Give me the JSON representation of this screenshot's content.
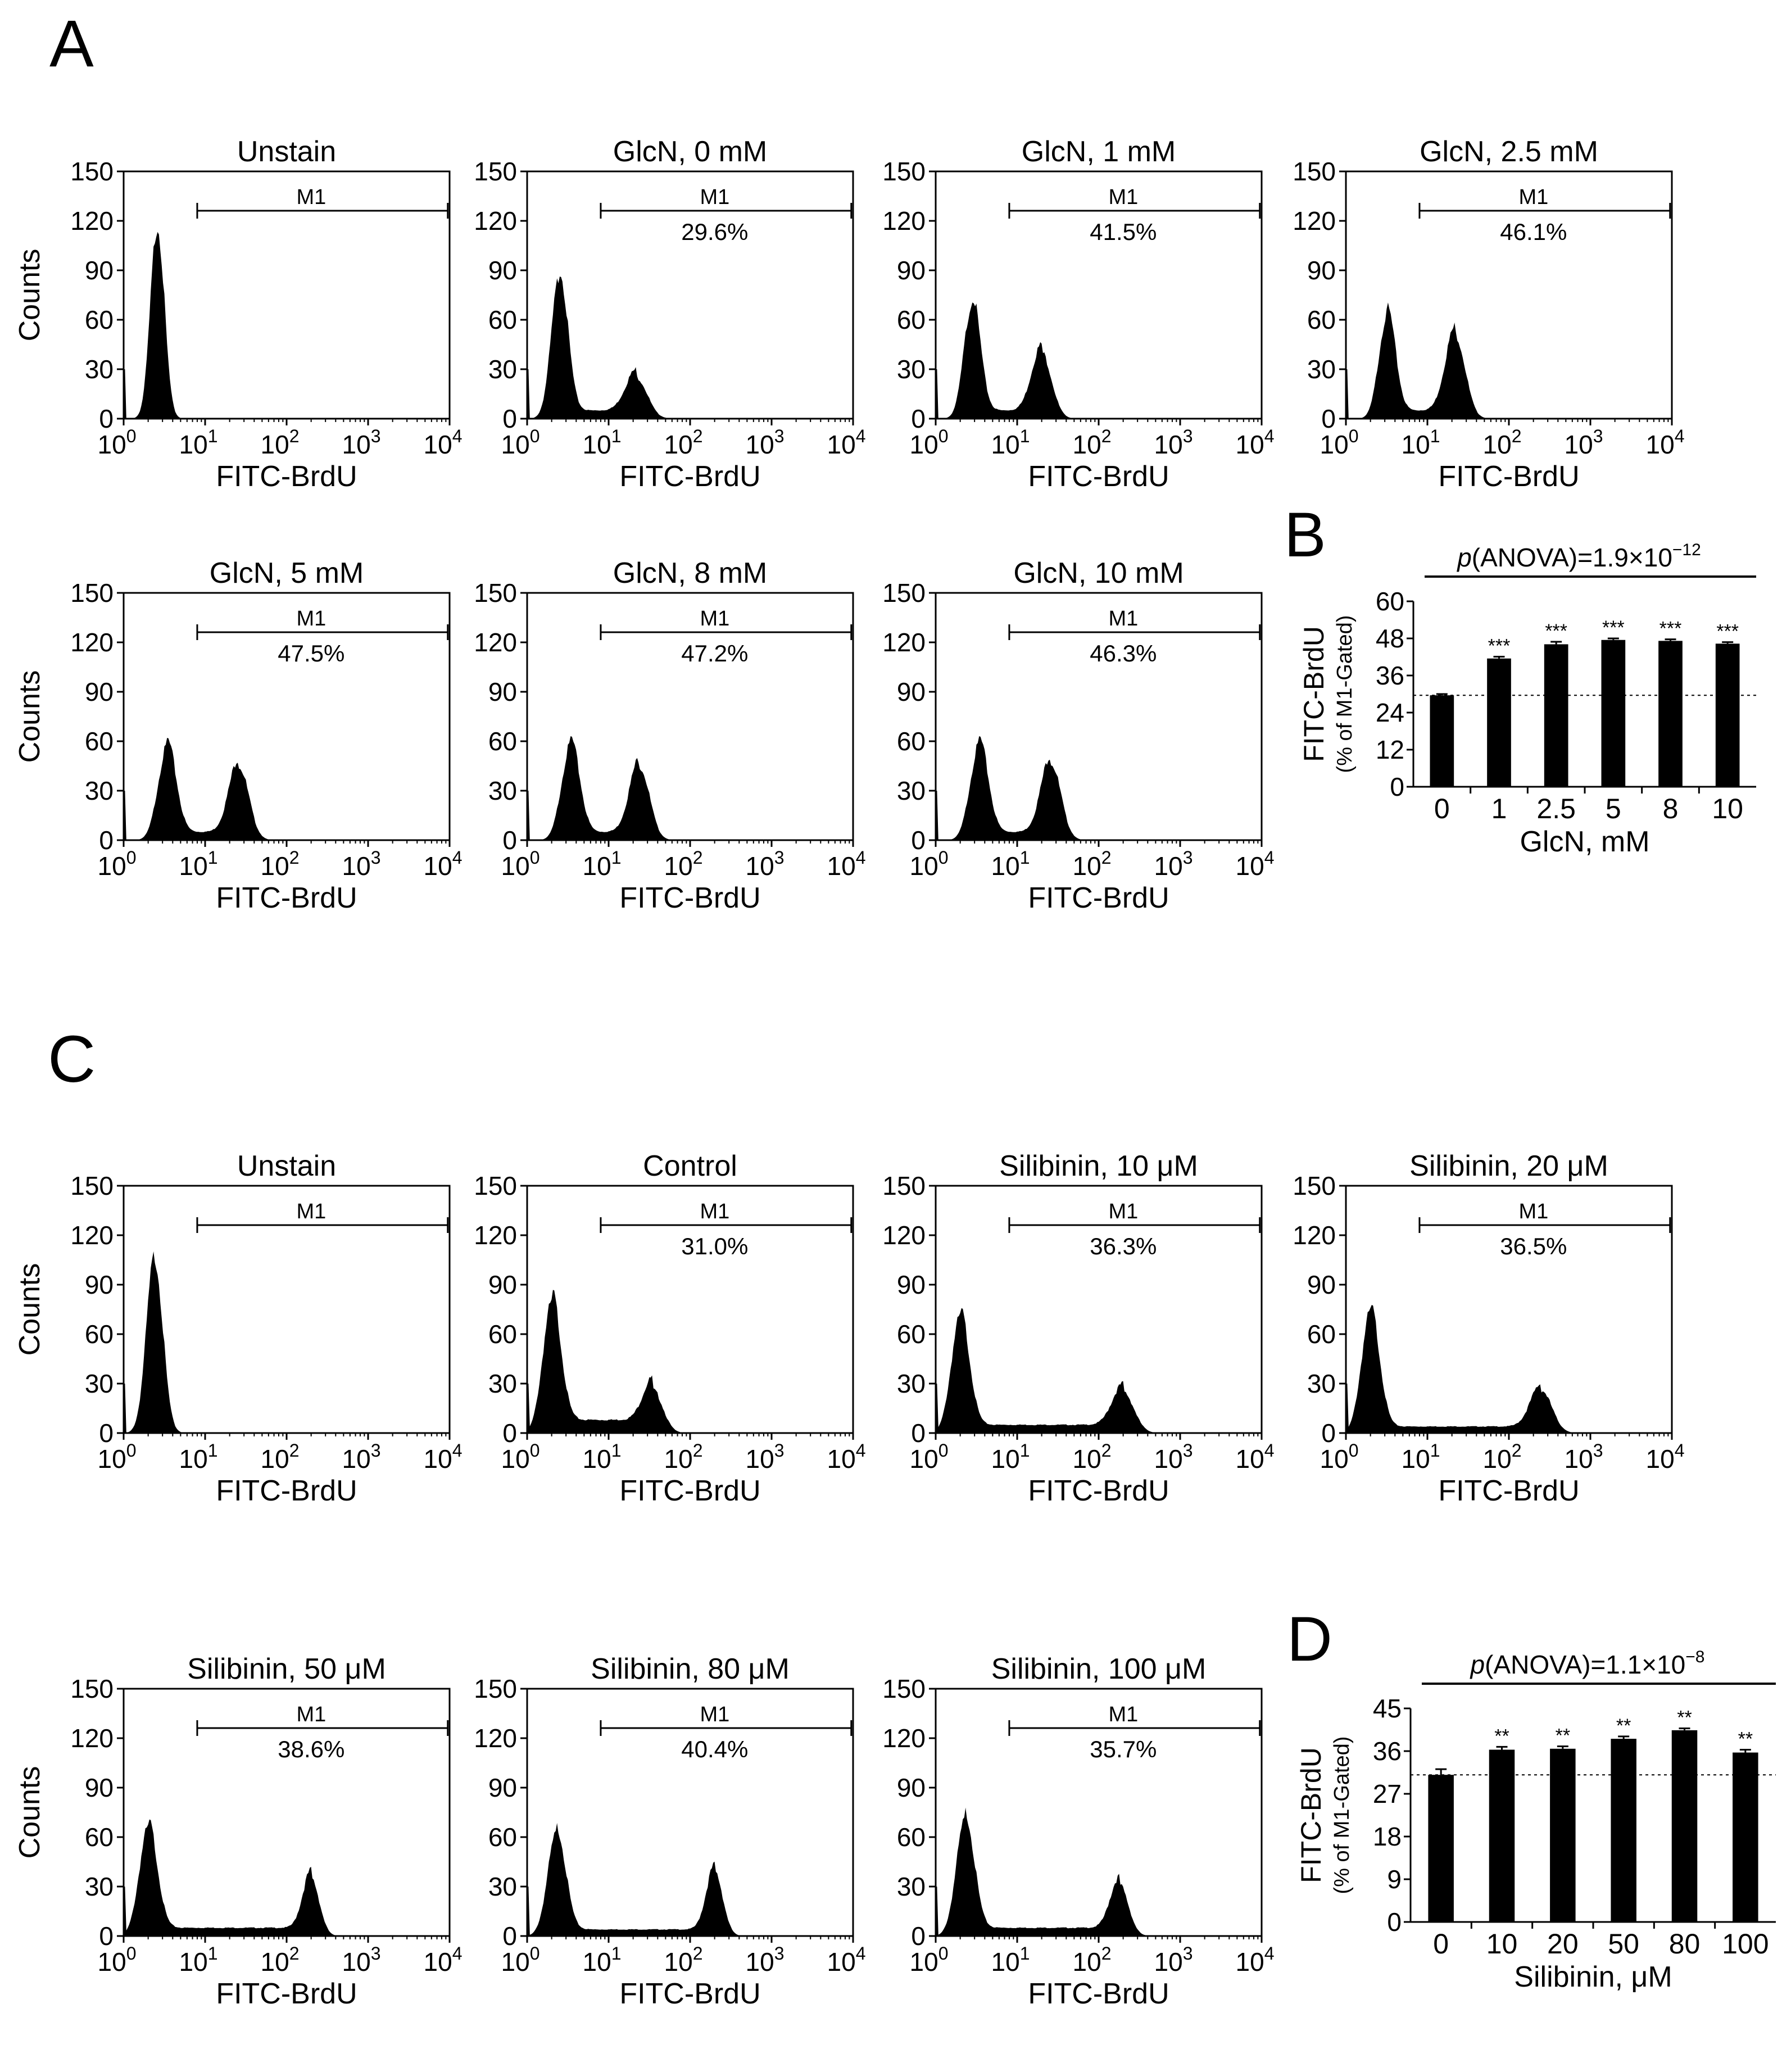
{
  "panel_labels": {
    "a": "A",
    "b": "B",
    "c": "C",
    "d": "D"
  },
  "common": {
    "x_axis_label": "FITC-BrdU",
    "y_axis_label": "Counts",
    "gate_label": "M1",
    "y_ticks": [
      "0",
      "30",
      "60",
      "90",
      "120",
      "150"
    ],
    "x_tick_base": "10",
    "x_tick_exps": [
      "0",
      "1",
      "2",
      "3",
      "4"
    ]
  },
  "chart_data": [
    {
      "id": "A",
      "type": "histogram",
      "xlabel": "FITC-BrdU",
      "ylabel": "Counts",
      "xscale": "log",
      "xlim": [
        1,
        10000
      ],
      "ylim": [
        0,
        150
      ],
      "gate": {
        "label": "M1",
        "range": [
          8,
          9500
        ]
      },
      "histograms": [
        {
          "title": "Unstain",
          "gate_pct": "",
          "peaks": [
            {
              "center": 2.6,
              "height": 118,
              "width": 0.085
            }
          ],
          "baseline": 1
        },
        {
          "title": "GlcN, 0 mM",
          "gate_pct": "29.6%",
          "peaks": [
            {
              "center": 2.5,
              "height": 86,
              "width": 0.1
            },
            {
              "center": 22,
              "height": 25,
              "width": 0.13
            }
          ],
          "baseline": 5
        },
        {
          "title": "GlcN, 1 mM",
          "gate_pct": "41.5%",
          "peaks": [
            {
              "center": 2.8,
              "height": 70,
              "width": 0.1
            },
            {
              "center": 20,
              "height": 40,
              "width": 0.12
            }
          ],
          "baseline": 5
        },
        {
          "title": "GlcN, 2.5 mM",
          "gate_pct": "46.1%",
          "peaks": [
            {
              "center": 3.2,
              "height": 63,
              "width": 0.1
            },
            {
              "center": 22,
              "height": 51,
              "width": 0.12
            }
          ],
          "baseline": 5
        },
        {
          "title": "GlcN, 5 mM",
          "gate_pct": "47.5%",
          "peaks": [
            {
              "center": 3.4,
              "height": 56,
              "width": 0.11
            },
            {
              "center": 26,
              "height": 45,
              "width": 0.12
            }
          ],
          "baseline": 5
        },
        {
          "title": "GlcN, 8 mM",
          "gate_pct": "47.2%",
          "peaks": [
            {
              "center": 3.4,
              "height": 57,
              "width": 0.11
            },
            {
              "center": 24,
              "height": 45,
              "width": 0.12
            }
          ],
          "baseline": 5
        },
        {
          "title": "GlcN, 10 mM",
          "gate_pct": "46.3%",
          "peaks": [
            {
              "center": 3.4,
              "height": 57,
              "width": 0.11
            },
            {
              "center": 26,
              "height": 47,
              "width": 0.12
            }
          ],
          "baseline": 5
        }
      ]
    },
    {
      "id": "B",
      "type": "bar",
      "title": "p(ANOVA)=1.9×10−12",
      "title_parts": {
        "p": "p",
        "rest": "(ANOVA)=1.9×10",
        "exp": "−12"
      },
      "xlabel": "GlcN, mM",
      "ylabel": "FITC-BrdU",
      "ylabel_sub": "(% of M1-Gated)",
      "categories": [
        "0",
        "1",
        "2.5",
        "5",
        "8",
        "10"
      ],
      "values": [
        29.6,
        41.5,
        46.1,
        47.5,
        47.2,
        46.3
      ],
      "errors": [
        0.4,
        0.6,
        0.8,
        0.5,
        0.5,
        0.5
      ],
      "significance": [
        "",
        "***",
        "***",
        "***",
        "***",
        "***"
      ],
      "reference_line": 29.6,
      "ylim": [
        0,
        60
      ],
      "y_ticks": [
        "0",
        "12",
        "24",
        "36",
        "48",
        "60"
      ]
    },
    {
      "id": "C",
      "type": "histogram",
      "xlabel": "FITC-BrdU",
      "ylabel": "Counts",
      "xscale": "log",
      "xlim": [
        1,
        10000
      ],
      "ylim": [
        0,
        150
      ],
      "gate": {
        "label": "M1",
        "range": [
          8,
          9500
        ]
      },
      "histograms": [
        {
          "title": "Unstain",
          "gate_pct": "",
          "peaks": [
            {
              "center": 2.4,
              "height": 107,
              "width": 0.1
            }
          ],
          "baseline": 1
        },
        {
          "title": "Control",
          "gate_pct": "31.0%",
          "peaks": [
            {
              "center": 2.0,
              "height": 78,
              "width": 0.11
            },
            {
              "center": 35,
              "height": 26,
              "width": 0.12
            }
          ],
          "baseline": 8
        },
        {
          "title": "Silibinin, 10 μM",
          "gate_pct": "36.3%",
          "peaks": [
            {
              "center": 2.0,
              "height": 70,
              "width": 0.11
            },
            {
              "center": 200,
              "height": 25,
              "width": 0.13
            }
          ],
          "baseline": 5
        },
        {
          "title": "Silibinin, 20 μM",
          "gate_pct": "36.5%",
          "peaks": [
            {
              "center": 2.0,
              "height": 73,
              "width": 0.11
            },
            {
              "center": 250,
              "height": 26,
              "width": 0.13
            }
          ],
          "baseline": 4
        },
        {
          "title": "Silibinin, 50 μM",
          "gate_pct": "38.6%",
          "peaks": [
            {
              "center": 2.0,
              "height": 65,
              "width": 0.11
            },
            {
              "center": 200,
              "height": 35,
              "width": 0.1
            }
          ],
          "baseline": 5
        },
        {
          "title": "Silibinin, 80 μM",
          "gate_pct": "40.4%",
          "peaks": [
            {
              "center": 2.3,
              "height": 62,
              "width": 0.11
            },
            {
              "center": 200,
              "height": 39,
              "width": 0.1
            }
          ],
          "baseline": 4
        },
        {
          "title": "Silibinin, 100 μM",
          "gate_pct": "35.7%",
          "peaks": [
            {
              "center": 2.3,
              "height": 70,
              "width": 0.11
            },
            {
              "center": 180,
              "height": 31,
              "width": 0.11
            }
          ],
          "baseline": 5
        }
      ]
    },
    {
      "id": "D",
      "type": "bar",
      "title": "p(ANOVA)=1.1×10−8",
      "title_parts": {
        "p": "p",
        "rest": "(ANOVA)=1.1×10",
        "exp": "−8"
      },
      "xlabel": "Silibinin, μM",
      "ylabel": "FITC-BrdU",
      "ylabel_sub": "(% of M1-Gated)",
      "categories": [
        "0",
        "10",
        "20",
        "50",
        "80",
        "100"
      ],
      "values": [
        31.0,
        36.3,
        36.5,
        38.6,
        40.4,
        35.7
      ],
      "errors": [
        1.2,
        0.6,
        0.5,
        0.5,
        0.4,
        0.6
      ],
      "significance": [
        "",
        "**",
        "**",
        "**",
        "**",
        "**"
      ],
      "reference_line": 31.0,
      "ylim": [
        0,
        45
      ],
      "y_ticks": [
        "0",
        "9",
        "18",
        "27",
        "36",
        "45"
      ]
    }
  ]
}
